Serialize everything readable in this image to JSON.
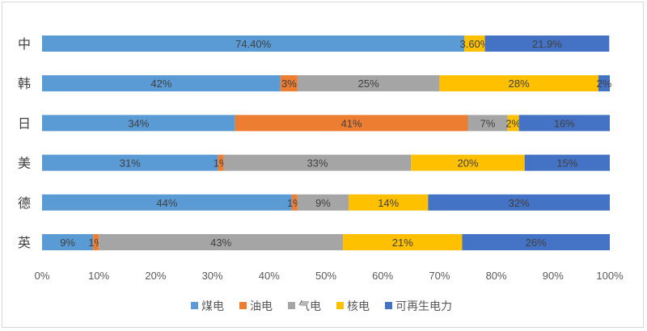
{
  "chart_data": {
    "type": "bar",
    "orientation": "horizontal",
    "stacked": true,
    "categories": [
      "中",
      "韩",
      "日",
      "美",
      "德",
      "英"
    ],
    "series": [
      {
        "name": "煤电",
        "color": "#5b9bd5",
        "values": [
          74.4,
          42,
          34,
          31,
          44,
          9
        ],
        "labels": [
          "74.40%",
          "42%",
          "34%",
          "31%",
          "44%",
          "9%"
        ]
      },
      {
        "name": "油电",
        "color": "#ed7d31",
        "values": [
          0,
          3,
          41,
          1,
          1,
          1
        ],
        "labels": [
          "",
          "3%",
          "41%",
          "1%",
          "1%",
          "1%"
        ]
      },
      {
        "name": "气电",
        "color": "#a5a5a5",
        "values": [
          0,
          25,
          7,
          33,
          9,
          43
        ],
        "labels": [
          "",
          "25%",
          "7%",
          "33%",
          "9%",
          "43%"
        ]
      },
      {
        "name": "核电",
        "color": "#ffc000",
        "values": [
          3.6,
          28,
          2,
          20,
          14,
          21
        ],
        "labels": [
          "3.60%",
          "28%",
          "2%",
          "20%",
          "14%",
          "21%"
        ]
      },
      {
        "name": "可再生电力",
        "color": "#4472c4",
        "values": [
          21.9,
          2,
          16,
          15,
          32,
          26
        ],
        "labels": [
          "21.9%",
          "2%",
          "16%",
          "15%",
          "32%",
          "26%"
        ]
      }
    ],
    "xlim": [
      0,
      100
    ],
    "x_ticks": [
      "0%",
      "10%",
      "20%",
      "30%",
      "40%",
      "50%",
      "60%",
      "70%",
      "80%",
      "90%",
      "100%"
    ],
    "legend_position": "bottom",
    "grid": false
  }
}
